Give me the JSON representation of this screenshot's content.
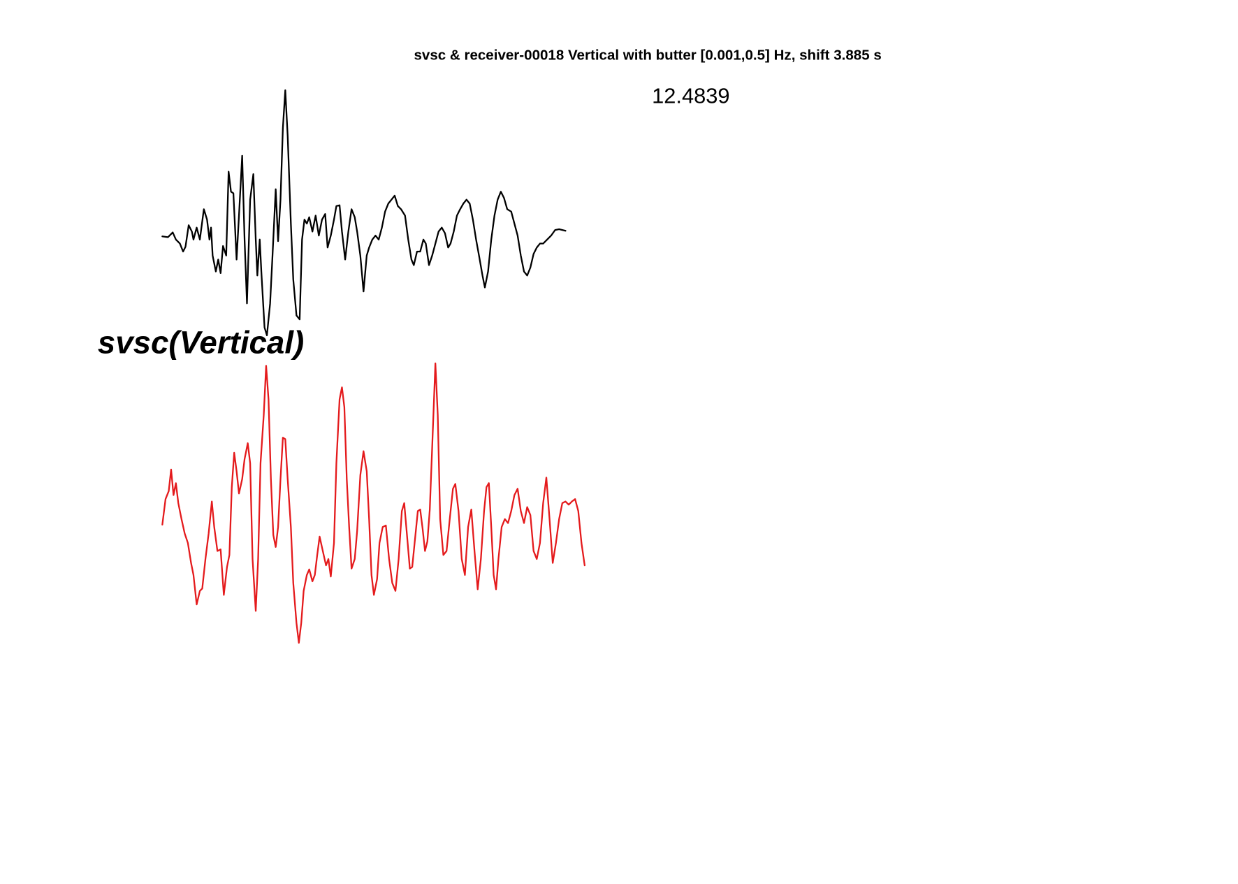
{
  "chart_data": {
    "type": "line",
    "title": "svsc & receiver-00018 Vertical with butter [0.001,0.5] Hz, shift 3.885 s",
    "annotation": "12.4839",
    "label": "svsc(Vertical)",
    "series": [
      {
        "color": "#000000",
        "x": [
          0,
          7,
          13,
          17,
          22,
          26,
          29,
          33,
          37,
          39,
          43,
          47,
          52,
          56,
          59,
          61,
          63,
          67,
          70,
          73,
          76,
          80,
          83,
          86,
          89,
          93,
          96,
          100,
          103,
          106,
          110,
          114,
          117,
          119,
          122,
          124,
          128,
          131,
          135,
          138,
          142,
          145,
          148,
          151,
          154,
          157,
          161,
          164,
          168,
          172,
          175,
          178,
          181,
          184,
          188,
          192,
          196,
          200,
          204,
          207,
          211,
          215,
          218,
          222,
          225,
          229,
          233,
          237,
          241,
          244,
          248,
          252,
          256,
          259,
          263,
          267,
          271,
          275,
          279,
          283,
          287,
          291,
          295,
          299,
          304,
          308,
          312,
          315,
          319,
          323,
          327,
          330,
          334,
          338,
          342,
          346,
          350,
          354,
          358,
          361,
          365,
          369,
          373,
          377,
          381,
          385,
          389,
          393,
          397,
          401,
          404,
          408,
          412,
          416,
          420,
          424,
          428,
          432,
          437,
          441,
          445,
          449,
          453,
          457,
          461,
          465,
          469,
          473,
          477,
          482,
          487,
          492,
          497,
          505
        ],
        "values": [
          0,
          -1,
          5,
          -4,
          -9,
          -19,
          -13,
          14,
          6,
          -4,
          11,
          -4,
          34,
          21,
          -4,
          11,
          -24,
          -44,
          -29,
          -46,
          -12,
          -24,
          81,
          56,
          54,
          -29,
          26,
          101,
          -4,
          -84,
          46,
          78,
          -4,
          -49,
          -4,
          -44,
          -114,
          -124,
          -84,
          -24,
          59,
          -6,
          46,
          136,
          183,
          126,
          16,
          -54,
          -99,
          -104,
          -4,
          21,
          16,
          24,
          6,
          26,
          1,
          21,
          28,
          -14,
          1,
          21,
          38,
          39,
          6,
          -29,
          6,
          34,
          24,
          6,
          -24,
          -69,
          -24,
          -14,
          -4,
          1,
          -4,
          11,
          31,
          41,
          46,
          51,
          38,
          34,
          26,
          -4,
          -29,
          -36,
          -19,
          -19,
          -4,
          -9,
          -36,
          -24,
          -9,
          6,
          11,
          4,
          -14,
          -9,
          6,
          26,
          34,
          41,
          46,
          41,
          21,
          -4,
          -26,
          -49,
          -64,
          -44,
          -4,
          26,
          46,
          56,
          48,
          34,
          31,
          16,
          1,
          -24,
          -44,
          -49,
          -39,
          -22,
          -14,
          -9,
          -9,
          -4,
          1,
          8,
          9,
          7
        ]
      },
      {
        "color": "#e41a1c",
        "x": [
          0,
          4,
          8,
          11,
          14,
          17,
          20,
          24,
          28,
          32,
          36,
          39,
          43,
          47,
          50,
          54,
          58,
          62,
          65,
          69,
          73,
          77,
          81,
          84,
          87,
          90,
          93,
          96,
          100,
          103,
          107,
          110,
          113,
          117,
          120,
          123,
          127,
          130,
          133,
          136,
          139,
          142,
          145,
          148,
          151,
          154,
          157,
          161,
          164,
          168,
          171,
          174,
          177,
          181,
          184,
          188,
          191,
          194,
          197,
          201,
          205,
          208,
          211,
          215,
          218,
          222,
          225,
          228,
          231,
          234,
          237,
          241,
          244,
          248,
          252,
          256,
          259,
          262,
          265,
          269,
          272,
          276,
          280,
          284,
          288,
          292,
          296,
          300,
          303,
          306,
          310,
          313,
          316,
          320,
          323,
          326,
          329,
          332,
          335,
          338,
          342,
          345,
          348,
          352,
          356,
          360,
          364,
          367,
          371,
          375,
          379,
          383,
          387,
          391,
          395,
          399,
          403,
          406,
          409,
          412,
          415,
          418,
          421,
          425,
          429,
          433,
          437,
          441,
          445,
          449,
          453,
          457,
          461,
          465,
          469,
          473,
          477,
          481,
          485,
          489,
          493,
          497,
          501,
          505,
          509,
          513,
          517,
          521,
          525,
          529
        ],
        "values": [
          0,
          32,
          42,
          69,
          37,
          52,
          27,
          7,
          -11,
          -23,
          -48,
          -63,
          -100,
          -83,
          -80,
          -43,
          -11,
          29,
          -3,
          -33,
          -31,
          -88,
          -53,
          -38,
          47,
          90,
          67,
          39,
          57,
          82,
          102,
          77,
          -43,
          -108,
          -43,
          77,
          137,
          199,
          157,
          57,
          -13,
          -28,
          -3,
          57,
          109,
          107,
          57,
          -3,
          -73,
          -123,
          -148,
          -123,
          -83,
          -63,
          -56,
          -71,
          -63,
          -38,
          -15,
          -33,
          -51,
          -43,
          -65,
          -23,
          77,
          157,
          172,
          147,
          57,
          -3,
          -55,
          -43,
          -8,
          62,
          92,
          67,
          7,
          -63,
          -88,
          -68,
          -23,
          -3,
          -1,
          -43,
          -73,
          -83,
          -43,
          17,
          27,
          -8,
          -55,
          -53,
          -23,
          17,
          19,
          -5,
          -33,
          -21,
          19,
          97,
          202,
          137,
          7,
          -38,
          -33,
          7,
          45,
          51,
          17,
          -43,
          -63,
          -3,
          19,
          -33,
          -81,
          -43,
          17,
          47,
          52,
          -3,
          -63,
          -81,
          -43,
          -3,
          7,
          2,
          17,
          37,
          45,
          17,
          2,
          22,
          12,
          -33,
          -43,
          -23,
          27,
          59,
          7,
          -48,
          -23,
          7,
          27,
          29,
          25,
          29,
          32,
          17,
          -23,
          -51
        ]
      }
    ]
  }
}
